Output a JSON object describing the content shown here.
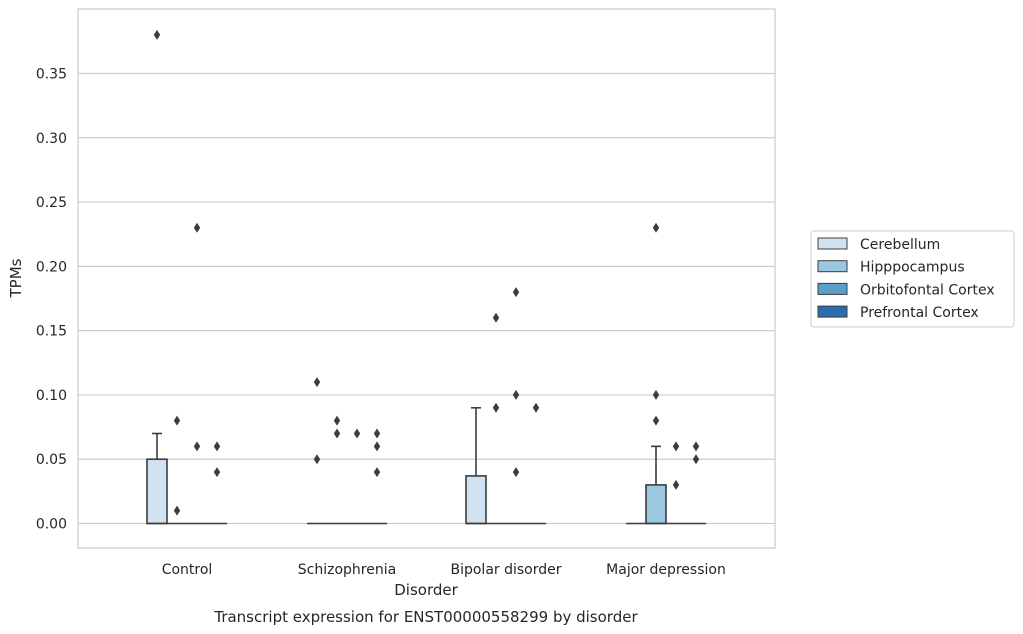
{
  "chart_data": {
    "type": "boxplot",
    "title": "Transcript expression for ENST00000558299 by disorder",
    "xlabel": "Disorder",
    "ylabel": "TPMs",
    "ylim": [
      -0.018,
      0.398
    ],
    "yticks": [
      "0.00",
      "0.05",
      "0.10",
      "0.15",
      "0.20",
      "0.25",
      "0.30",
      "0.35"
    ],
    "ytick_values": [
      0,
      0.05,
      0.1,
      0.15,
      0.2,
      0.25,
      0.3,
      0.35
    ],
    "categories": [
      "Control",
      "Schizophrenia",
      "Bipolar disorder",
      "Major depression"
    ],
    "grid": "horizontal",
    "legend_position": "right",
    "series": [
      {
        "name": "Cerebellum",
        "color": "#d1e2f2"
      },
      {
        "name": "Hipppocampus",
        "color": "#9ac8e0"
      },
      {
        "name": "Orbitofontal Cortex",
        "color": "#5a9ecc"
      },
      {
        "name": "Prefrontal Cortex",
        "color": "#2a6eb0"
      }
    ],
    "boxes": [
      [
        {
          "q1": 0,
          "median": 0,
          "q3": 0.05,
          "whisker_low": 0,
          "whisker_high": 0.07,
          "outliers": [
            0.38
          ]
        },
        {
          "q1": 0,
          "median": 0,
          "q3": 0,
          "whisker_low": 0,
          "whisker_high": 0,
          "outliers": [
            0.08,
            0.01
          ]
        },
        {
          "q1": 0,
          "median": 0,
          "q3": 0,
          "whisker_low": 0,
          "whisker_high": 0,
          "outliers": [
            0.06,
            0.23
          ]
        },
        {
          "q1": 0,
          "median": 0,
          "q3": 0,
          "whisker_low": 0,
          "whisker_high": 0,
          "outliers": [
            0.06,
            0.04
          ]
        }
      ],
      [
        {
          "q1": 0,
          "median": 0,
          "q3": 0,
          "whisker_low": 0,
          "whisker_high": 0,
          "outliers": [
            0.11,
            0.05
          ]
        },
        {
          "q1": 0,
          "median": 0,
          "q3": 0,
          "whisker_low": 0,
          "whisker_high": 0,
          "outliers": [
            0.08,
            0.07
          ]
        },
        {
          "q1": 0,
          "median": 0,
          "q3": 0,
          "whisker_low": 0,
          "whisker_high": 0,
          "outliers": [
            0.07
          ]
        },
        {
          "q1": 0,
          "median": 0,
          "q3": 0,
          "whisker_low": 0,
          "whisker_high": 0,
          "outliers": [
            0.07,
            0.06,
            0.04
          ]
        }
      ],
      [
        {
          "q1": 0,
          "median": 0,
          "q3": 0.037,
          "whisker_low": 0,
          "whisker_high": 0.09,
          "outliers": []
        },
        {
          "q1": 0,
          "median": 0,
          "q3": 0,
          "whisker_low": 0,
          "whisker_high": 0,
          "outliers": [
            0.16,
            0.09
          ]
        },
        {
          "q1": 0,
          "median": 0,
          "q3": 0,
          "whisker_low": 0,
          "whisker_high": 0,
          "outliers": [
            0.18,
            0.1,
            0.04
          ]
        },
        {
          "q1": 0,
          "median": 0,
          "q3": 0,
          "whisker_low": 0,
          "whisker_high": 0,
          "outliers": [
            0.09
          ]
        }
      ],
      [
        {
          "q1": 0,
          "median": 0,
          "q3": 0,
          "whisker_low": 0,
          "whisker_high": 0,
          "outliers": []
        },
        {
          "q1": 0,
          "median": 0,
          "q3": 0.03,
          "whisker_low": 0,
          "whisker_high": 0.06,
          "outliers": [
            0.23,
            0.1,
            0.08
          ]
        },
        {
          "q1": 0,
          "median": 0,
          "q3": 0,
          "whisker_low": 0,
          "whisker_high": 0,
          "outliers": [
            0.06,
            0.03
          ]
        },
        {
          "q1": 0,
          "median": 0,
          "q3": 0,
          "whisker_low": 0,
          "whisker_high": 0,
          "outliers": [
            0.06,
            0.05
          ]
        }
      ]
    ]
  }
}
